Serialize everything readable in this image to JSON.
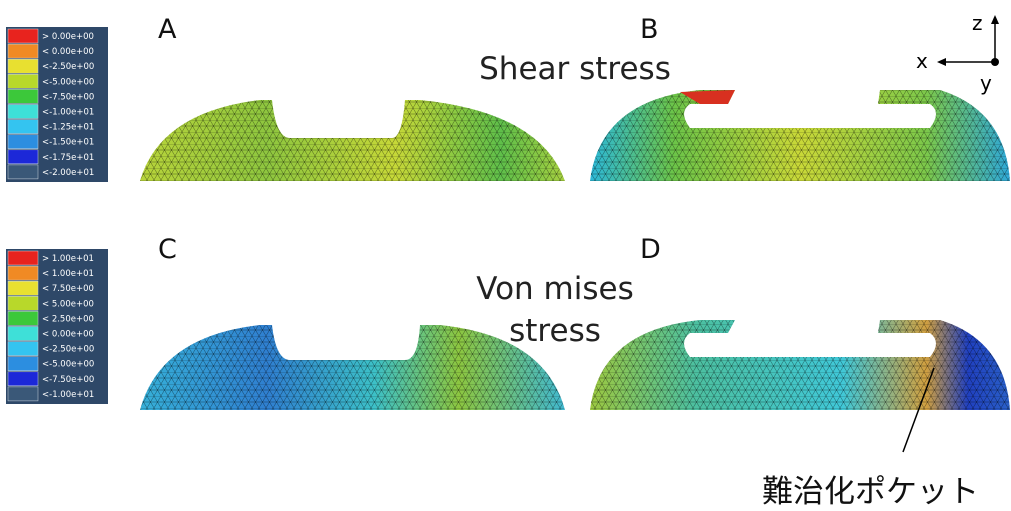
{
  "legends": [
    {
      "entries": [
        "> 0.00e+00",
        "< 0.00e+00",
        "<-2.50e+00",
        "<-5.00e+00",
        "<-7.50e+00",
        "<-1.00e+01",
        "<-1.25e+01",
        "<-1.50e+01",
        "<-1.75e+01",
        "<-2.00e+01"
      ]
    },
    {
      "entries": [
        "> 1.00e+01",
        "< 1.00e+01",
        "< 7.50e+00",
        "< 5.00e+00",
        "< 2.50e+00",
        "< 0.00e+00",
        "<-2.50e+00",
        "<-5.00e+00",
        "<-7.50e+00",
        "<-1.00e+01"
      ]
    }
  ],
  "panels": [
    {
      "label": "A"
    },
    {
      "label": "B"
    },
    {
      "label": "C"
    },
    {
      "label": "D"
    }
  ],
  "sections": [
    {
      "title": "Shear stress"
    },
    {
      "title": "Von mises stress"
    }
  ],
  "axes": {
    "z": "z",
    "x": "x",
    "y": "y"
  },
  "annotation": "難治化ポケット"
}
